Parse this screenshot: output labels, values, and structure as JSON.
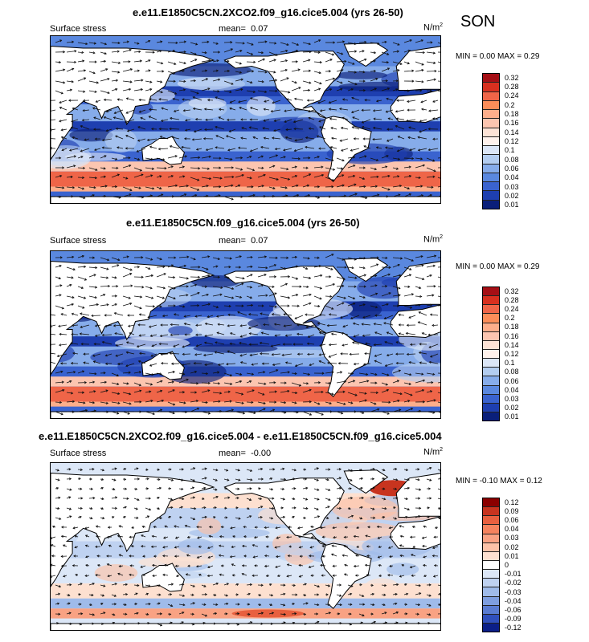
{
  "season": "SON",
  "units_prefix": "N/m",
  "units_exp": "2",
  "panels": [
    {
      "id": "p1",
      "title": "e.e11.E1850C5CN.2XCO2.f09_g16.cice5.004 (yrs 26-50)",
      "variable": "Surface stress",
      "mean_label": "mean=",
      "mean_value": "0.07",
      "minmax": "MIN =  0.00 MAX =  0.29",
      "colorbar": {
        "labels": [
          "0.32",
          "0.28",
          "0.24",
          "0.2",
          "0.18",
          "0.16",
          "0.14",
          "0.12",
          "0.1",
          "0.08",
          "0.06",
          "0.04",
          "0.03",
          "0.02",
          "0.01"
        ],
        "colors": [
          "#a50f15",
          "#d7301f",
          "#ef6548",
          "#fc8d59",
          "#fdae8b",
          "#fcc5b0",
          "#fde3d6",
          "#fff2ec",
          "#dbe6f7",
          "#b3cdf0",
          "#86acea",
          "#5a88df",
          "#3a63cf",
          "#1e3fb0",
          "#0a1f7a"
        ]
      }
    },
    {
      "id": "p2",
      "title": "e.e11.E1850C5CN.f09_g16.cice5.004 (yrs 26-50)",
      "variable": "Surface stress",
      "mean_label": "mean=",
      "mean_value": "0.07",
      "minmax": "MIN =  0.00 MAX =  0.29",
      "colorbar": {
        "labels": [
          "0.32",
          "0.28",
          "0.24",
          "0.2",
          "0.18",
          "0.16",
          "0.14",
          "0.12",
          "0.1",
          "0.08",
          "0.06",
          "0.04",
          "0.03",
          "0.02",
          "0.01"
        ],
        "colors": [
          "#a50f15",
          "#d7301f",
          "#ef6548",
          "#fc8d59",
          "#fdae8b",
          "#fcc5b0",
          "#fde3d6",
          "#fff2ec",
          "#dbe6f7",
          "#b3cdf0",
          "#86acea",
          "#5a88df",
          "#3a63cf",
          "#1e3fb0",
          "#0a1f7a"
        ]
      }
    },
    {
      "id": "p3",
      "title": "e.e11.E1850C5CN.2XCO2.f09_g16.cice5.004 - e.e11.E1850C5CN.f09_g16.cice5.004",
      "variable": "Surface stress",
      "mean_label": "mean=",
      "mean_value": "-0.00",
      "minmax": "MIN = -0.10 MAX =  0.12",
      "colorbar": {
        "labels": [
          "0.12",
          "0.09",
          "0.06",
          "0.04",
          "0.03",
          "0.02",
          "0.01",
          "0",
          "-0.01",
          "-0.02",
          "-0.03",
          "-0.04",
          "-0.06",
          "-0.09",
          "-0.12"
        ],
        "colors": [
          "#8b0000",
          "#c8341f",
          "#e8603f",
          "#f5835e",
          "#f9a283",
          "#fcc2a8",
          "#fde0d0",
          "#ffffff",
          "#dce7f7",
          "#bfd2f1",
          "#9fbbea",
          "#7e9ee0",
          "#5a7cd2",
          "#3050bd",
          "#0b1f88"
        ]
      }
    }
  ]
}
